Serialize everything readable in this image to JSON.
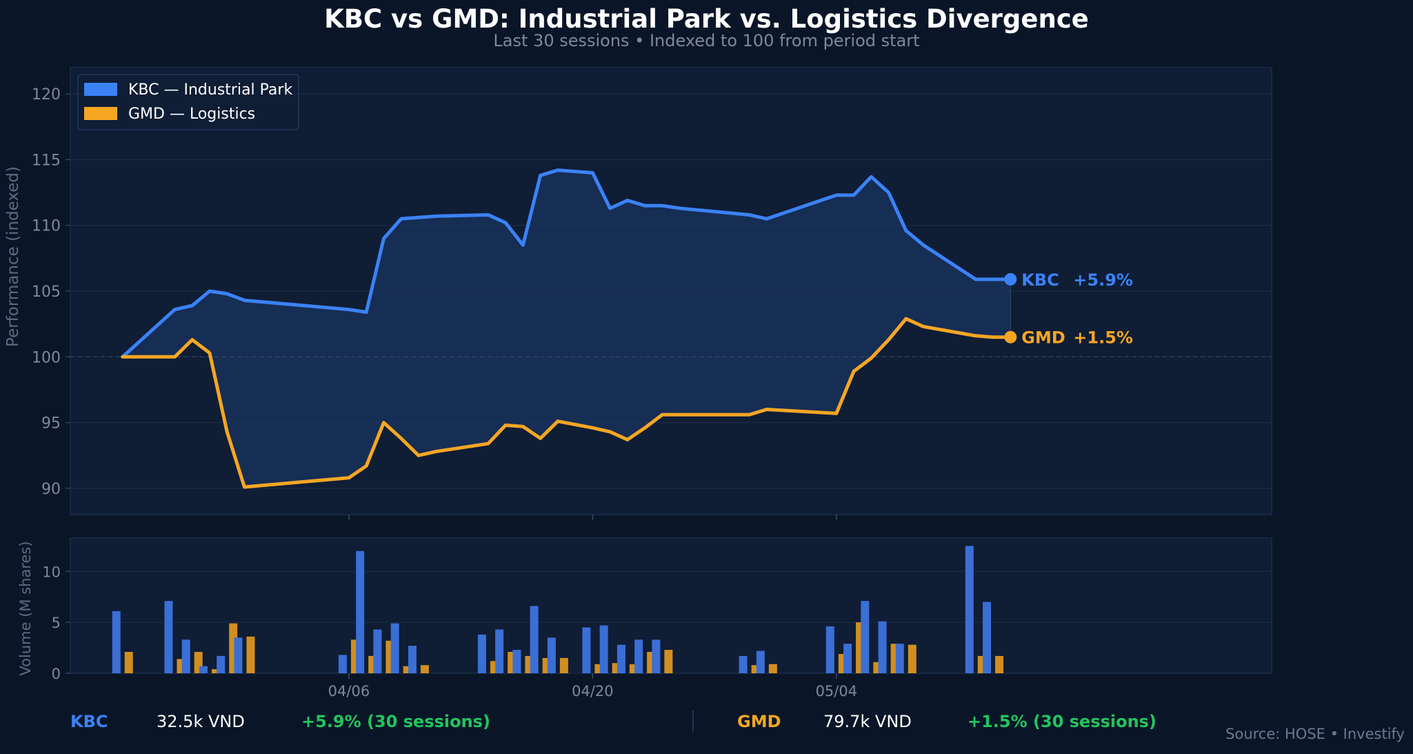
{
  "chart_data": {
    "type": "line",
    "title": "KBC vs GMD: Industrial Park vs. Logistics Divergence",
    "subtitle": "Last 30 sessions • Indexed to 100 from period start",
    "ylabel": "Performance (indexed)",
    "ylim": [
      88,
      122
    ],
    "yticks": [
      90,
      95,
      100,
      105,
      110,
      115,
      120
    ],
    "baseline": 100,
    "grid": true,
    "legend_position": "top-left",
    "xlim": [
      "2025-03-21",
      "2025-05-29"
    ],
    "xticks": [
      {
        "date": "2025-04-06",
        "label": "04/06"
      },
      {
        "date": "2025-04-20",
        "label": "04/20"
      },
      {
        "date": "2025-05-04",
        "label": "05/04"
      }
    ],
    "dates": [
      "2025-03-24",
      "2025-03-27",
      "2025-03-28",
      "2025-03-29",
      "2025-03-30",
      "2025-03-31",
      "2025-04-06",
      "2025-04-07",
      "2025-04-08",
      "2025-04-09",
      "2025-04-10",
      "2025-04-11",
      "2025-04-14",
      "2025-04-15",
      "2025-04-16",
      "2025-04-17",
      "2025-04-18",
      "2025-04-20",
      "2025-04-21",
      "2025-04-22",
      "2025-04-23",
      "2025-04-24",
      "2025-04-25",
      "2025-04-29",
      "2025-04-30",
      "2025-05-04",
      "2025-05-05",
      "2025-05-06",
      "2025-05-07",
      "2025-05-08",
      "2025-05-09",
      "2025-05-12",
      "2025-05-13",
      "2025-05-14"
    ],
    "series": [
      {
        "name": "KBC — Industrial Park",
        "color": "#3b82f6",
        "end_label": "KBC",
        "end_change": "+5.9%",
        "values": [
          100.0,
          103.6,
          103.9,
          105.0,
          104.8,
          104.3,
          103.6,
          103.4,
          109.0,
          110.5,
          110.6,
          110.7,
          110.8,
          110.2,
          108.5,
          113.8,
          114.2,
          114.0,
          111.3,
          111.9,
          111.5,
          111.5,
          111.3,
          110.8,
          110.5,
          112.3,
          112.3,
          113.7,
          112.5,
          109.6,
          108.5,
          105.9,
          105.9,
          105.9
        ]
      },
      {
        "name": "GMD — Logistics",
        "color": "#f5a623",
        "end_label": "GMD",
        "end_change": "+1.5%",
        "values": [
          100.0,
          100.0,
          101.3,
          100.3,
          94.3,
          90.1,
          90.8,
          91.7,
          95.0,
          93.8,
          92.5,
          92.8,
          93.4,
          94.8,
          94.7,
          93.8,
          95.1,
          94.6,
          94.3,
          93.7,
          94.6,
          95.6,
          95.6,
          95.6,
          96.0,
          95.7,
          98.9,
          99.9,
          101.3,
          102.9,
          102.3,
          101.6,
          101.5,
          101.5
        ]
      }
    ],
    "volume": {
      "ylabel": "Volume (M shares)",
      "ylim": [
        0,
        13
      ],
      "yticks": [
        0,
        5,
        10
      ],
      "dates": [
        "2025-03-24",
        "2025-03-27",
        "2025-03-28",
        "2025-03-29",
        "2025-03-30",
        "2025-03-31",
        "2025-04-06",
        "2025-04-07",
        "2025-04-08",
        "2025-04-09",
        "2025-04-10",
        "2025-04-11",
        "2025-04-14",
        "2025-04-15",
        "2025-04-16",
        "2025-04-17",
        "2025-04-18",
        "2025-04-20",
        "2025-04-21",
        "2025-04-22",
        "2025-04-23",
        "2025-04-24",
        "2025-04-25",
        "2025-04-29",
        "2025-04-30",
        "2025-05-04",
        "2025-05-05",
        "2025-05-06",
        "2025-05-07",
        "2025-05-08",
        "2025-05-09",
        "2025-05-12",
        "2025-05-13"
      ],
      "series": [
        {
          "name": "KBC",
          "color": "#3b6fd6",
          "values": [
            6.1,
            7.1,
            3.3,
            0.7,
            1.7,
            3.5,
            1.8,
            12.0,
            4.3,
            4.9,
            2.7,
            0.0,
            3.8,
            4.3,
            2.3,
            6.6,
            3.5,
            4.5,
            4.7,
            2.8,
            3.3,
            3.3,
            0.0,
            1.7,
            2.2,
            4.6,
            2.9,
            7.1,
            5.1,
            2.9,
            0.0,
            12.5,
            7.0
          ]
        },
        {
          "name": "GMD",
          "color": "#d18f20",
          "values": [
            2.1,
            1.4,
            2.1,
            0.4,
            4.9,
            3.6,
            3.3,
            1.7,
            3.2,
            0.7,
            0.8,
            0.0,
            1.2,
            2.1,
            1.7,
            1.5,
            1.5,
            0.9,
            1.0,
            0.9,
            2.1,
            2.3,
            0.0,
            0.8,
            0.9,
            1.9,
            5.0,
            1.1,
            2.9,
            2.8,
            0.0,
            1.7,
            1.7
          ]
        }
      ]
    }
  },
  "footer": {
    "kbc": {
      "symbol": "KBC",
      "price": "32.5k VND",
      "change": "+5.9% (30 sessions)",
      "color": "#3b82f6"
    },
    "gmd": {
      "symbol": "GMD",
      "price": "79.7k VND",
      "change": "+1.5% (30 sessions)",
      "color": "#f5a623"
    }
  },
  "source": "Source: HOSE  •  Investify"
}
